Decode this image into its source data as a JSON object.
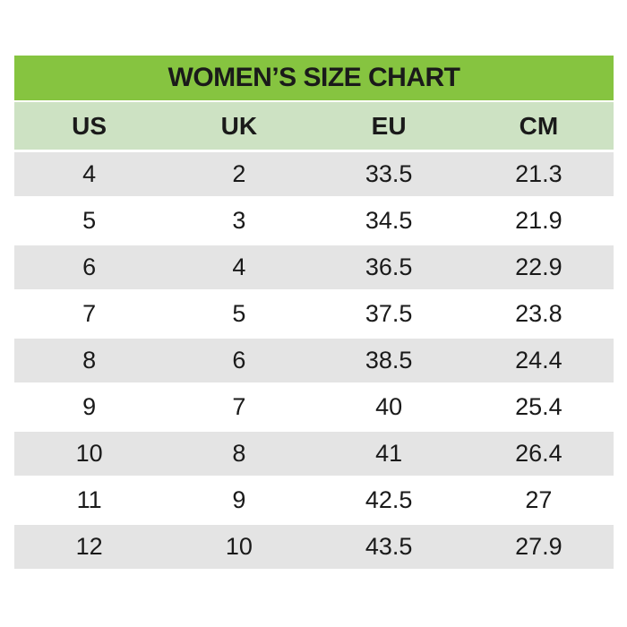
{
  "colors": {
    "title_bg": "#86C440",
    "header_bg": "#CDE2C3",
    "row_alt_bg": "#E4E4E4",
    "row_bg": "#FFFFFF",
    "text": "#1A1A1A"
  },
  "chart_data": {
    "type": "table",
    "title": "WOMEN’S SIZE CHART",
    "columns": [
      "US",
      "UK",
      "EU",
      "CM"
    ],
    "rows": [
      [
        "4",
        "2",
        "33.5",
        "21.3"
      ],
      [
        "5",
        "3",
        "34.5",
        "21.9"
      ],
      [
        "6",
        "4",
        "36.5",
        "22.9"
      ],
      [
        "7",
        "5",
        "37.5",
        "23.8"
      ],
      [
        "8",
        "6",
        "38.5",
        "24.4"
      ],
      [
        "9",
        "7",
        "40",
        "25.4"
      ],
      [
        "10",
        "8",
        "41",
        "26.4"
      ],
      [
        "11",
        "9",
        "42.5",
        "27"
      ],
      [
        "12",
        "10",
        "43.5",
        "27.9"
      ]
    ],
    "layout_hints": {
      "row_striping": "first data row shaded, alternating gray/white",
      "all_cells_centered": true
    }
  }
}
